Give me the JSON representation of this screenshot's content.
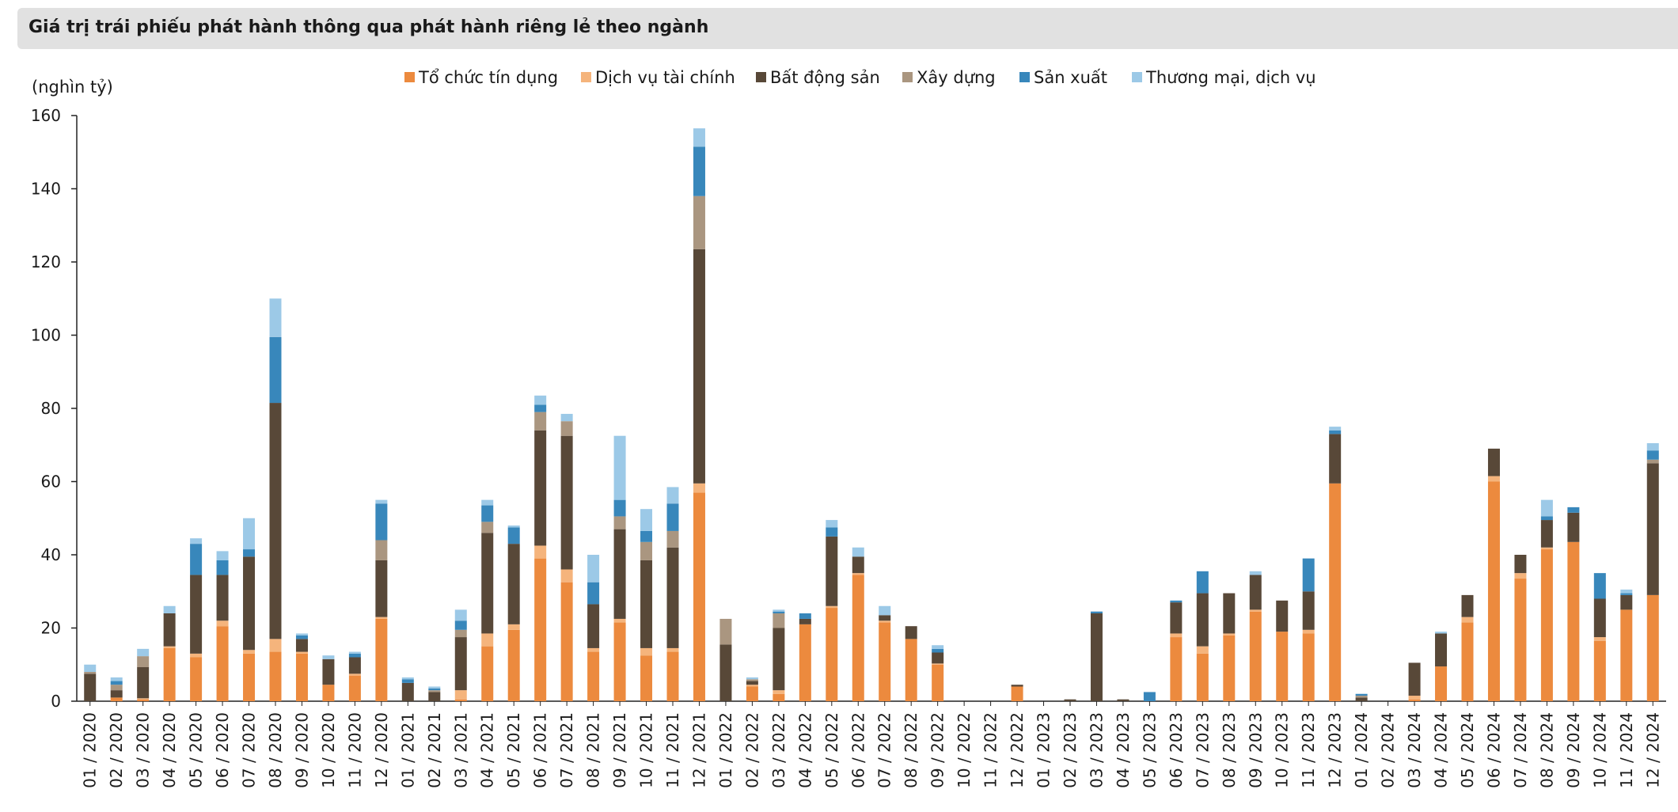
{
  "chart_data": {
    "type": "bar",
    "stacked": true,
    "title": "Giá trị trái phiếu phát hành thông qua phát hành riêng lẻ theo ngành",
    "ylabel": "(nghìn tỷ)",
    "xlabel": "",
    "ylim": [
      0,
      160
    ],
    "yticks": [
      0,
      20,
      40,
      60,
      80,
      100,
      120,
      140,
      160
    ],
    "legend_position": "top",
    "categories": [
      "01 / 2020",
      "02 / 2020",
      "03 / 2020",
      "04 / 2020",
      "05 / 2020",
      "06 / 2020",
      "07 / 2020",
      "08 / 2020",
      "09 / 2020",
      "10 / 2020",
      "11 / 2020",
      "12 / 2020",
      "01 / 2021",
      "02 / 2021",
      "03 / 2021",
      "04 / 2021",
      "05 / 2021",
      "06 / 2021",
      "07 / 2021",
      "08 / 2021",
      "09 / 2021",
      "10 / 2021",
      "11 / 2021",
      "12 / 2021",
      "01 / 2022",
      "02 / 2022",
      "03 / 2022",
      "04 / 2022",
      "05 / 2022",
      "06 / 2022",
      "07 / 2022",
      "08 / 2022",
      "09 / 2022",
      "10 / 2022",
      "11 / 2022",
      "12 / 2022",
      "01 / 2023",
      "02 / 2023",
      "03 / 2023",
      "04 / 2023",
      "05 / 2023",
      "06 / 2023",
      "07 / 2023",
      "08 / 2023",
      "09 / 2023",
      "10 / 2023",
      "11 / 2023",
      "12 / 2023",
      "01 / 2024",
      "02 / 2024",
      "03 / 2024",
      "04 / 2024",
      "05 / 2024",
      "06 / 2024",
      "07 / 2024",
      "08 / 2024",
      "09 / 2024",
      "10 / 2024",
      "11 / 2024",
      "12 / 2024"
    ],
    "series": [
      {
        "name": "Tổ chức tín dụng",
        "color": "#ec8a3e",
        "values": [
          0,
          1,
          0.5,
          14.5,
          12,
          20.5,
          13,
          13.5,
          13,
          4.5,
          7,
          22.5,
          0,
          0,
          0.5,
          15,
          19.5,
          39,
          32.5,
          13.5,
          21.5,
          12.5,
          13.5,
          57,
          0,
          4,
          2,
          21,
          25.5,
          34.5,
          21.5,
          17,
          10,
          0,
          0,
          4,
          0,
          0,
          0,
          0,
          0,
          17.5,
          13,
          18,
          24.5,
          19,
          18.5,
          59.5,
          0,
          0,
          0.5,
          9.5,
          21.5,
          60,
          33.5,
          41.5,
          43.5,
          16.5,
          25,
          29
        ]
      },
      {
        "name": "Dịch vụ tài chính",
        "color": "#f5b47c",
        "values": [
          0,
          0,
          0.3,
          0.5,
          1,
          1.5,
          1,
          3.5,
          0.5,
          0,
          0.5,
          0.5,
          0,
          0,
          2.5,
          3.5,
          1.5,
          3.5,
          3.5,
          1,
          1,
          2,
          1,
          2.5,
          0,
          0.5,
          1,
          0,
          0.5,
          0.5,
          0.5,
          0,
          0.3,
          0,
          0,
          0,
          0,
          0,
          0,
          0,
          0,
          1,
          2,
          0.5,
          0.5,
          0,
          1,
          0,
          0,
          0,
          1,
          0,
          1.5,
          1.5,
          1.5,
          0.5,
          0,
          1,
          0,
          0
        ]
      },
      {
        "name": "Bất động sản",
        "color": "#584838",
        "values": [
          7.5,
          2,
          8.5,
          9,
          21.5,
          12.5,
          25.5,
          64.5,
          3.5,
          7,
          4.5,
          15.5,
          5,
          2.5,
          14.5,
          27.5,
          22,
          31.5,
          36.5,
          12,
          24.5,
          24,
          27.5,
          64,
          15.5,
          1,
          17,
          1.5,
          19,
          4.5,
          1.5,
          3.5,
          3,
          0,
          0,
          0.5,
          0,
          0.5,
          24,
          0.5,
          0,
          8.5,
          14.5,
          11,
          9.5,
          8.5,
          10.5,
          13.5,
          1,
          0,
          9,
          9,
          6,
          7.5,
          5,
          7.5,
          8,
          10.5,
          4,
          36
        ]
      },
      {
        "name": "Xây dựng",
        "color": "#aa9680",
        "values": [
          0.5,
          1.5,
          3,
          0,
          0,
          0,
          0,
          0,
          0,
          0,
          0,
          5.5,
          0,
          0.5,
          2,
          3,
          0,
          5,
          4,
          0,
          3.5,
          5,
          4.5,
          14.5,
          7,
          0.5,
          4,
          0,
          0,
          0,
          0,
          0,
          0,
          0,
          0,
          0,
          0,
          0,
          0,
          0,
          0,
          0,
          0,
          0,
          0,
          0,
          0,
          0,
          0.5,
          0,
          0,
          0,
          0,
          0,
          0,
          0,
          0,
          0,
          0,
          1
        ]
      },
      {
        "name": "Sản xuất",
        "color": "#3887bb",
        "values": [
          0,
          1,
          0,
          0,
          8.5,
          4,
          2,
          18,
          1,
          0,
          1,
          10,
          1,
          0.5,
          2.5,
          4.5,
          4.5,
          2,
          0,
          6,
          4.5,
          3,
          7.5,
          13.5,
          0,
          0,
          0.5,
          1.5,
          2.5,
          0,
          0,
          0,
          1,
          0,
          0,
          0,
          0,
          0,
          0.5,
          0,
          2.5,
          0.5,
          6,
          0,
          0,
          0,
          9,
          1,
          0.5,
          0,
          0,
          0,
          0,
          0,
          0,
          1,
          1.5,
          7,
          0.5,
          2.5
        ]
      },
      {
        "name": "Thương mại, dịch vụ",
        "color": "#9cc9e7",
        "values": [
          2,
          1,
          2,
          2,
          1.5,
          2.5,
          8.5,
          10.5,
          0.5,
          1,
          0.5,
          1,
          0.5,
          0.5,
          3,
          1.5,
          0.5,
          2.5,
          2,
          7.5,
          17.5,
          6,
          4.5,
          5,
          0,
          0.5,
          0.5,
          0,
          2,
          2.5,
          2.5,
          0,
          1,
          0,
          0,
          0,
          0,
          0,
          0,
          0,
          0,
          0,
          0,
          0,
          1,
          0,
          0,
          1,
          0,
          0,
          0,
          0.5,
          0,
          0,
          0,
          4.5,
          0,
          0,
          1,
          2
        ]
      }
    ]
  }
}
